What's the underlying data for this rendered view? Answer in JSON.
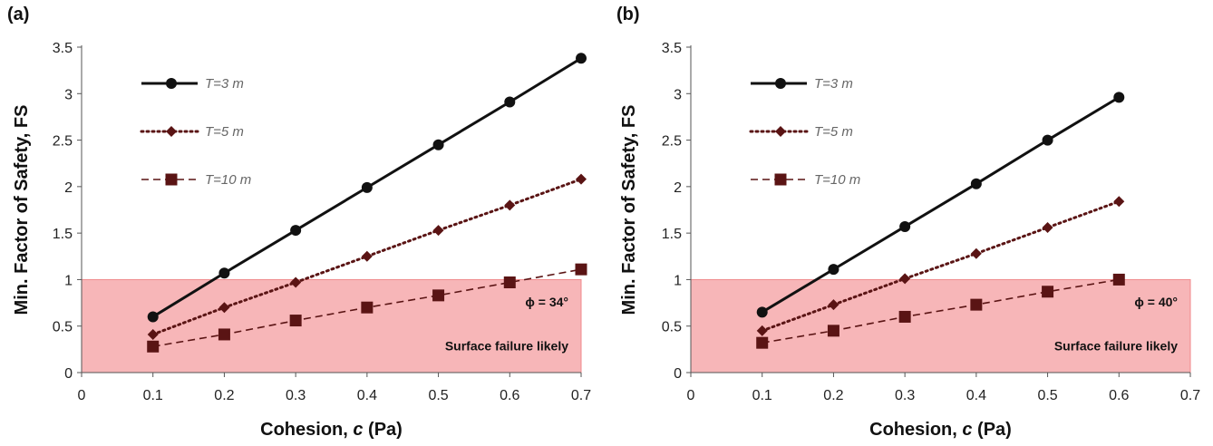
{
  "chart_data": [
    {
      "type": "line",
      "panel_label": "(a)",
      "xlabel": "Cohesion, ",
      "xlabel_var": "c",
      "xlabel_unit": " (Pa)",
      "ylabel": "Min. Factor of Safety, FS",
      "xlim": [
        0,
        0.7
      ],
      "ylim": [
        0,
        3.5
      ],
      "x_ticks": [
        "0",
        "0.1",
        "0.2",
        "0.3",
        "0.4",
        "0.5",
        "0.6",
        "0.7"
      ],
      "y_ticks": [
        "0",
        "0.5",
        "1",
        "1.5",
        "2",
        "2.5",
        "3",
        "3.5"
      ],
      "shaded_region": {
        "y_from": 0,
        "y_to": 1,
        "color": "#f7b6b8",
        "label": "Surface failure likely"
      },
      "annotation": "ϕ = 34°",
      "series": [
        {
          "name": "T=3 m",
          "marker": "circle",
          "line": "solid",
          "x": [
            0.1,
            0.2,
            0.3,
            0.4,
            0.5,
            0.6,
            0.7
          ],
          "values": [
            0.6,
            1.07,
            1.53,
            1.99,
            2.45,
            2.91,
            3.38
          ]
        },
        {
          "name": "T=5 m",
          "marker": "diamond",
          "line": "dotted",
          "x": [
            0.1,
            0.2,
            0.3,
            0.4,
            0.5,
            0.6,
            0.7
          ],
          "values": [
            0.41,
            0.7,
            0.97,
            1.25,
            1.53,
            1.8,
            2.08
          ]
        },
        {
          "name": "T=10 m",
          "marker": "square",
          "line": "dashed",
          "x": [
            0.1,
            0.2,
            0.3,
            0.4,
            0.5,
            0.6,
            0.7
          ],
          "values": [
            0.28,
            0.41,
            0.56,
            0.7,
            0.83,
            0.97,
            1.11
          ]
        }
      ]
    },
    {
      "type": "line",
      "panel_label": "(b)",
      "xlabel": "Cohesion, ",
      "xlabel_var": "c",
      "xlabel_unit": " (Pa)",
      "ylabel": "Min. Factor of Safety, FS",
      "xlim": [
        0,
        0.7
      ],
      "ylim": [
        0,
        3.5
      ],
      "x_ticks": [
        "0",
        "0.1",
        "0.2",
        "0.3",
        "0.4",
        "0.5",
        "0.6",
        "0.7"
      ],
      "y_ticks": [
        "0",
        "0.5",
        "1",
        "1.5",
        "2",
        "2.5",
        "3",
        "3.5"
      ],
      "shaded_region": {
        "y_from": 0,
        "y_to": 1,
        "color": "#f7b6b8",
        "label": "Surface failure likely"
      },
      "annotation": "ϕ = 40°",
      "series": [
        {
          "name": "T=3 m",
          "marker": "circle",
          "line": "solid",
          "x": [
            0.1,
            0.2,
            0.3,
            0.4,
            0.5,
            0.6
          ],
          "values": [
            0.65,
            1.11,
            1.57,
            2.03,
            2.5,
            2.96
          ]
        },
        {
          "name": "T=5 m",
          "marker": "diamond",
          "line": "dotted",
          "x": [
            0.1,
            0.2,
            0.3,
            0.4,
            0.5,
            0.6
          ],
          "values": [
            0.45,
            0.73,
            1.01,
            1.28,
            1.56,
            1.84
          ]
        },
        {
          "name": "T=10 m",
          "marker": "square",
          "line": "dashed",
          "x": [
            0.1,
            0.2,
            0.3,
            0.4,
            0.5,
            0.6
          ],
          "values": [
            0.32,
            0.45,
            0.6,
            0.73,
            0.87,
            1.0
          ]
        }
      ]
    }
  ],
  "colors": {
    "series_t3": "#111111",
    "series_t5": "#5a1414",
    "series_t10": "#5a1414",
    "shade": "#f7b6b8",
    "shade_border": "#f08a8d"
  }
}
